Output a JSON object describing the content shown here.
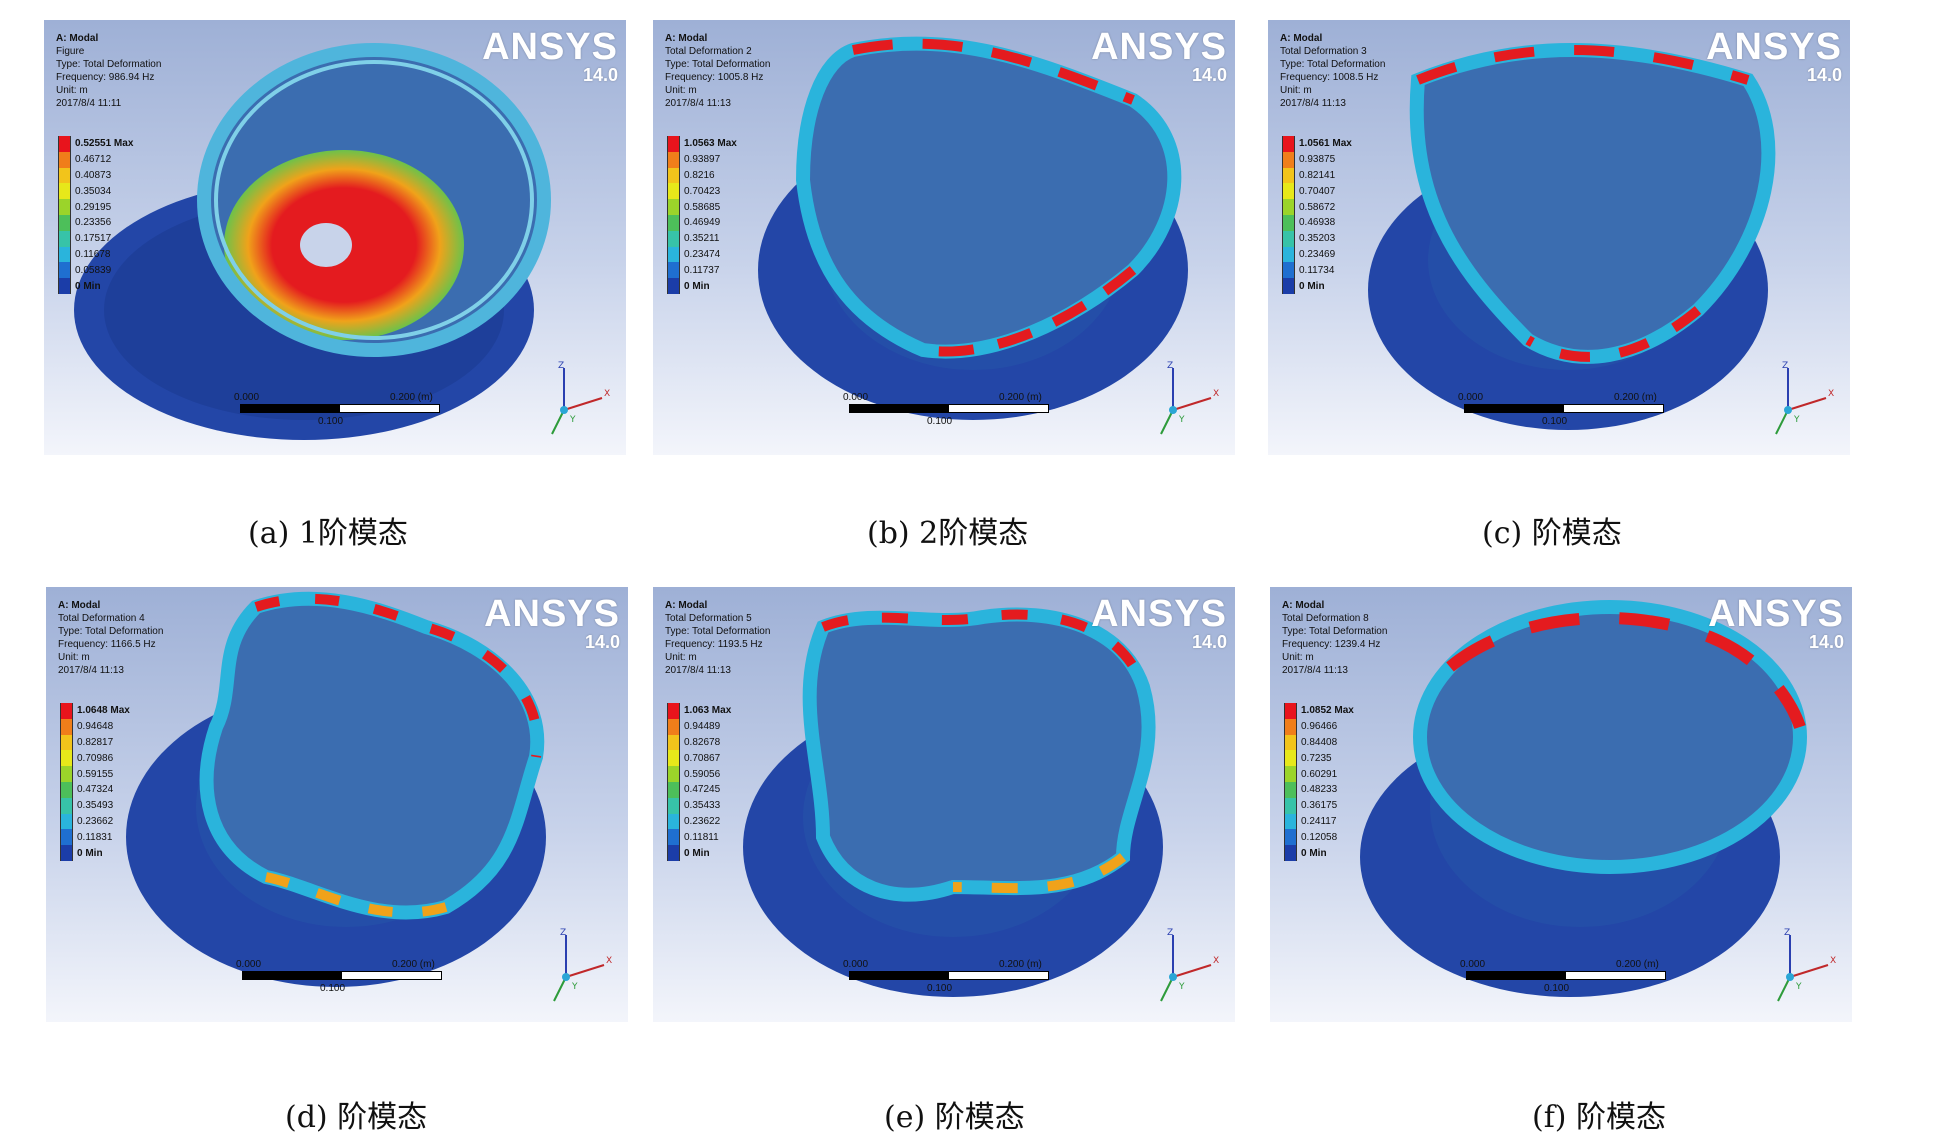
{
  "brand": {
    "logo": "ANSYS",
    "version": "14.0"
  },
  "scale": {
    "start": "0.000",
    "mid": "0.100",
    "end": "0.200 (m)"
  },
  "axes": {
    "z": "Z",
    "y": "Y",
    "x": "X"
  },
  "colors": {
    "legend": [
      "#e8141c",
      "#f07e1a",
      "#f2c41b",
      "#e7e81a",
      "#9bd42a",
      "#4dbf5a",
      "#37c3a8",
      "#2ab4dc",
      "#1f6fd0",
      "#1b3da8"
    ],
    "wheel_blue": "#2346a7",
    "hot_red": "#e41b1f"
  },
  "panels": [
    {
      "title": "A: Modal",
      "name": "Figure",
      "type": "Type: Total Deformation",
      "frequency": "Frequency: 986.94 Hz",
      "unit": "Unit: m",
      "date": "2017/8/4 11:11",
      "legend": [
        "0.52551 Max",
        "0.46712",
        "0.40873",
        "0.35034",
        "0.29195",
        "0.23356",
        "0.17517",
        "0.11678",
        "0.05839",
        "0 Min"
      ],
      "caption": "(a)  1阶模态"
    },
    {
      "title": "A: Modal",
      "name": "Total Deformation 2",
      "type": "Type: Total Deformation",
      "frequency": "Frequency: 1005.8 Hz",
      "unit": "Unit: m",
      "date": "2017/8/4 11:13",
      "legend": [
        "1.0563 Max",
        "0.93897",
        "0.8216",
        "0.70423",
        "0.58685",
        "0.46949",
        "0.35211",
        "0.23474",
        "0.11737",
        "0 Min"
      ],
      "caption": "(b)  2阶模态"
    },
    {
      "title": "A: Modal",
      "name": "Total Deformation 3",
      "type": "Type: Total Deformation",
      "frequency": "Frequency: 1008.5 Hz",
      "unit": "Unit: m",
      "date": "2017/8/4 11:13",
      "legend": [
        "1.0561 Max",
        "0.93875",
        "0.82141",
        "0.70407",
        "0.58672",
        "0.46938",
        "0.35203",
        "0.23469",
        "0.11734",
        "0 Min"
      ],
      "caption": "(c)  阶模态"
    },
    {
      "title": "A: Modal",
      "name": "Total Deformation 4",
      "type": "Type: Total Deformation",
      "frequency": "Frequency: 1166.5 Hz",
      "unit": "Unit: m",
      "date": "2017/8/4 11:13",
      "legend": [
        "1.0648 Max",
        "0.94648",
        "0.82817",
        "0.70986",
        "0.59155",
        "0.47324",
        "0.35493",
        "0.23662",
        "0.11831",
        "0 Min"
      ],
      "caption": "(d)  阶模态"
    },
    {
      "title": "A: Modal",
      "name": "Total Deformation 5",
      "type": "Type: Total Deformation",
      "frequency": "Frequency: 1193.5 Hz",
      "unit": "Unit: m",
      "date": "2017/8/4 11:13",
      "legend": [
        "1.063 Max",
        "0.94489",
        "0.82678",
        "0.70867",
        "0.59056",
        "0.47245",
        "0.35433",
        "0.23622",
        "0.11811",
        "0 Min"
      ],
      "caption": "(e)  阶模态"
    },
    {
      "title": "A: Modal",
      "name": "Total Deformation 8",
      "type": "Type: Total Deformation",
      "frequency": "Frequency: 1239.4 Hz",
      "unit": "Unit: m",
      "date": "2017/8/4 11:13",
      "legend": [
        "1.0852 Max",
        "0.96466",
        "0.84408",
        "0.7235",
        "0.60291",
        "0.48233",
        "0.36175",
        "0.24117",
        "0.12058",
        "0 Min"
      ],
      "caption": "(f)  阶模态"
    }
  ]
}
